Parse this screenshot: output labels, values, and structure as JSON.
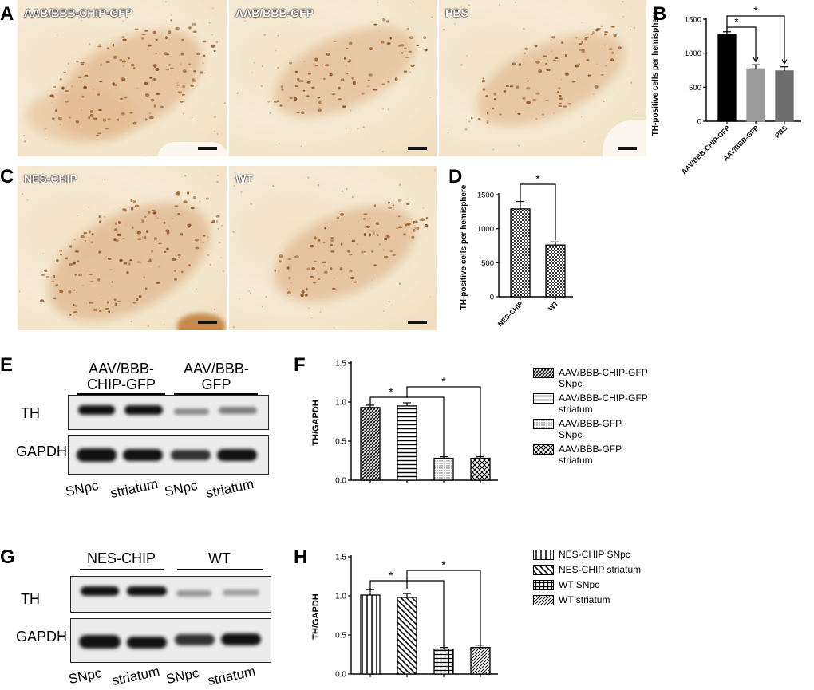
{
  "panel_letters": [
    "A",
    "B",
    "C",
    "D",
    "E",
    "F",
    "G",
    "H"
  ],
  "micrographs": {
    "row_a": [
      "AAB/BBB-CHIP-GFP",
      "AAB/BBB-GFP",
      "PBS"
    ],
    "row_c": [
      "NES-CHIP",
      "WT"
    ]
  },
  "blot_e": {
    "group1": "AAV/BBB-\nCHIP-GFP",
    "group2": "AAV/BBB-\nGFP",
    "row1": "TH",
    "row2": "GAPDH",
    "lanes": [
      "SNpc",
      "striatum",
      "SNpc",
      "striatum"
    ]
  },
  "blot_g": {
    "group1": "NES-CHIP",
    "group2": "WT",
    "row1": "TH",
    "row2": "GAPDH",
    "lanes": [
      "SNpc",
      "striatum",
      "SNpc",
      "striatum"
    ]
  },
  "chart_data": [
    {
      "id": "B",
      "type": "bar",
      "categories": [
        "AAV/BBB-CHIP-GFP",
        "AAV/BBB-GFP",
        "PBS"
      ],
      "values": [
        1275,
        770,
        740
      ],
      "errors": [
        40,
        60,
        60
      ],
      "colors": [
        "#000000",
        "#9b9b9b",
        "#6e6e6e"
      ],
      "ylabel": "TH-positive cells per hemisphere",
      "ylim": [
        0,
        1500
      ],
      "yticks": [
        0,
        500,
        1000,
        1500
      ],
      "significance": [
        {
          "from": 0,
          "to": 1,
          "label": "*"
        },
        {
          "from": 0,
          "to": 2,
          "label": "*"
        }
      ]
    },
    {
      "id": "D",
      "type": "bar",
      "categories": [
        "NES-CHIP",
        "WT"
      ],
      "values": [
        1290,
        760
      ],
      "errors": [
        110,
        45
      ],
      "ylabel": "TH-positive cells per hemisphere",
      "ylim": [
        0,
        1500
      ],
      "yticks": [
        0,
        500,
        1000,
        1500
      ],
      "significance": [
        {
          "from": 0,
          "to": 1,
          "label": "*"
        }
      ]
    },
    {
      "id": "F",
      "type": "bar",
      "series": [
        {
          "name": "AAV/BBB-CHIP-GFP\nSNpc",
          "value": 0.93,
          "error": 0.03
        },
        {
          "name": "AAV/BBB-CHIP-GFP\nstriatum",
          "value": 0.95,
          "error": 0.04
        },
        {
          "name": "AAV/BBB-GFP\nSNpc",
          "value": 0.28,
          "error": 0.02
        },
        {
          "name": "AAV/BBB-GFP\nstriatum",
          "value": 0.28,
          "error": 0.02
        }
      ],
      "ylabel": "TH/GAPDH",
      "ylim": [
        0,
        1.5
      ],
      "yticks": [
        "0.0",
        "0.5",
        "1.0",
        "1.5"
      ],
      "significance": [
        {
          "from": 0,
          "to": 2,
          "label": "*"
        },
        {
          "from": 1,
          "to": 3,
          "label": "*"
        }
      ],
      "legend": "right"
    },
    {
      "id": "H",
      "type": "bar",
      "series": [
        {
          "name": "NES-CHIP SNpc",
          "value": 1.01,
          "error": 0.07
        },
        {
          "name": "NES-CHIP striatum",
          "value": 0.98,
          "error": 0.05
        },
        {
          "name": "WT SNpc",
          "value": 0.32,
          "error": 0.02
        },
        {
          "name": "WT striatum",
          "value": 0.34,
          "error": 0.03
        }
      ],
      "ylabel": "TH/GAPDH",
      "ylim": [
        0,
        1.5
      ],
      "yticks": [
        "0.0",
        "0.5",
        "1.0",
        "1.5"
      ],
      "significance": [
        {
          "from": 0,
          "to": 2,
          "label": "*"
        },
        {
          "from": 1,
          "to": 3,
          "label": "*"
        }
      ],
      "legend": "right"
    }
  ]
}
